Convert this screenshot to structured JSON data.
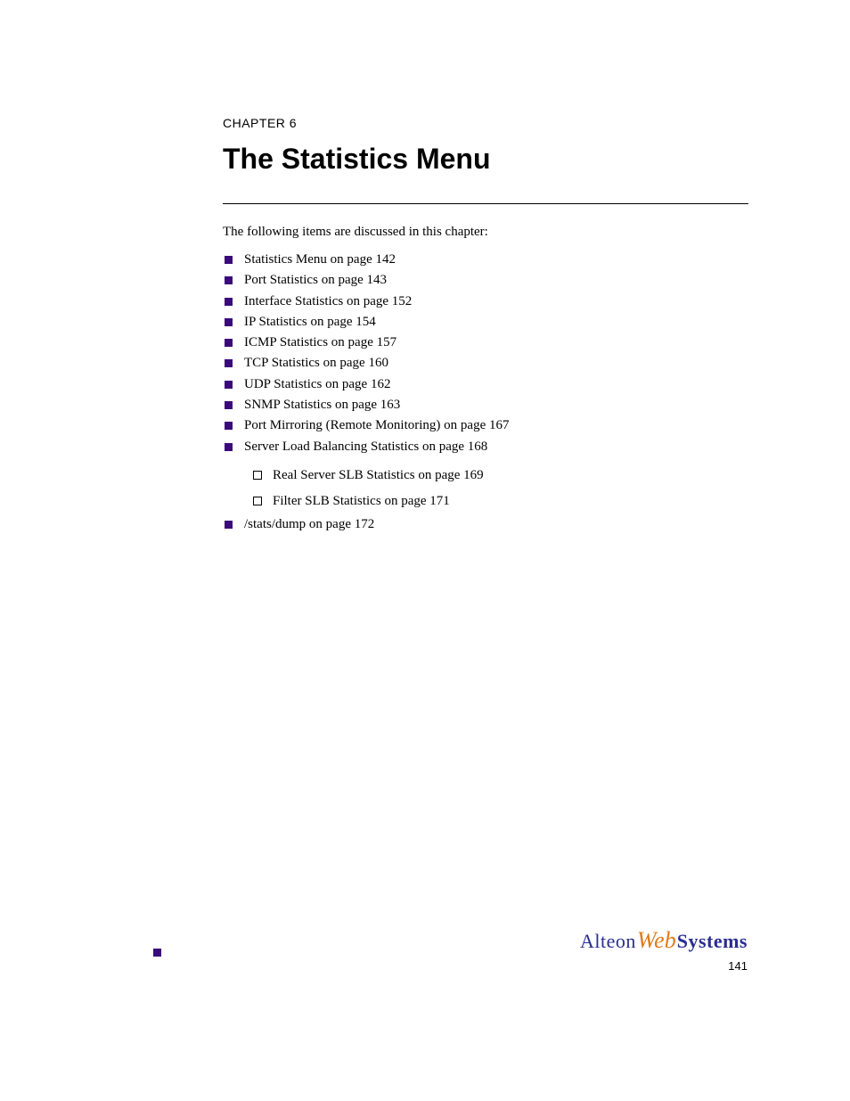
{
  "chapter": {
    "label": "CHAPTER 6",
    "title": "The Statistics Menu"
  },
  "intro_text": "The following items are discussed in this chapter:",
  "bullets": [
    {
      "text": "Statistics Menu",
      "page": "142"
    },
    {
      "text": "Port Statistics",
      "page": "143"
    },
    {
      "text": "Interface Statistics",
      "page": "152"
    },
    {
      "text": "IP Statistics",
      "page": "154"
    },
    {
      "text": "ICMP Statistics",
      "page": "157"
    },
    {
      "text": "TCP Statistics",
      "page": "160"
    },
    {
      "text": "UDP Statistics",
      "page": "162"
    },
    {
      "text": "SNMP Statistics",
      "page": "163"
    },
    {
      "text": "Port Mirroring (Remote Monitoring)",
      "page": "167"
    },
    {
      "text": "Server Load Balancing Statistics",
      "page": "168",
      "sub": [
        {
          "text": "Real Server SLB Statistics",
          "page": "169"
        },
        {
          "text": "Filter SLB Statistics",
          "page": "171"
        }
      ]
    },
    {
      "text": "/stats/dump",
      "page": "172"
    }
  ],
  "page_ref_prefix": "on page ",
  "footer": {
    "logo_alteon": "Alteon",
    "logo_web": "Web",
    "logo_systems": "Systems",
    "page_number": "141"
  },
  "colors": {
    "bullet_square": "#3a0a7a",
    "logo_blue": "#2a2e8f",
    "logo_orange": "#e07b1a",
    "text": "#000000",
    "background": "#ffffff"
  },
  "typography": {
    "chapter_label_fontsize": 14,
    "chapter_title_fontsize": 32,
    "body_fontsize": 15,
    "logo_fontsize": 22,
    "page_number_fontsize": 13
  }
}
